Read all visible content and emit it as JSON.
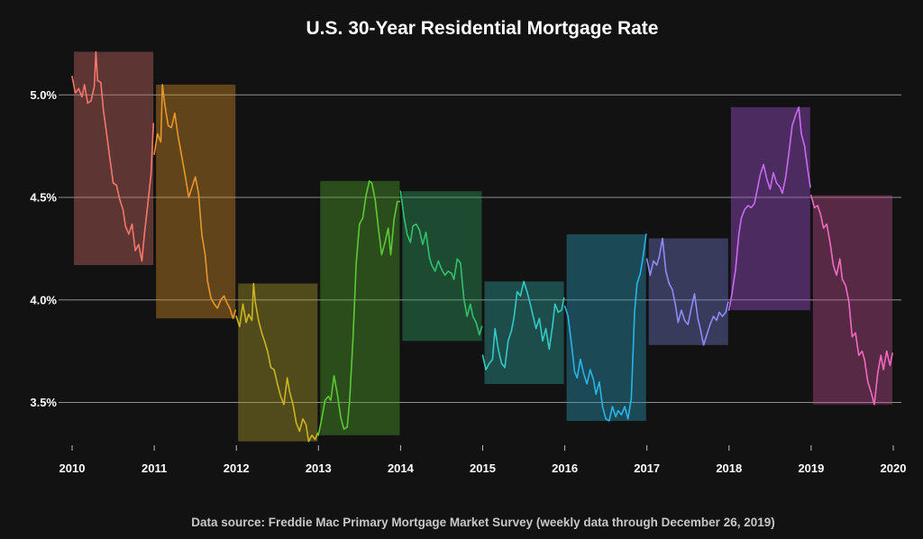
{
  "chart_data": {
    "type": "line",
    "title": "U.S. 30-Year Residential Mortgage Rate",
    "caption": "Data source: Freddie Mac Primary Mortgage Market Survey (weekly data through December 26, 2019)",
    "xlabel": "",
    "ylabel": "",
    "x_ticks": [
      "2010",
      "2011",
      "2012",
      "2013",
      "2014",
      "2015",
      "2016",
      "2017",
      "2018",
      "2019",
      "2020"
    ],
    "y_ticks": [
      "3.5%",
      "4.0%",
      "4.5%",
      "5.0%"
    ],
    "y_tick_values": [
      3.5,
      4.0,
      4.5,
      5.0
    ],
    "xlim": [
      2010,
      2020
    ],
    "ylim": [
      3.25,
      5.2
    ],
    "grid": "horizontal",
    "legend": "none",
    "series": [
      {
        "color": "#f8766d",
        "range": [
          4.17,
          5.21
        ],
        "points": [
          [
            0.0,
            5.09
          ],
          [
            0.04,
            5.01
          ],
          [
            0.08,
            5.03
          ],
          [
            0.12,
            4.99
          ],
          [
            0.15,
            5.05
          ],
          [
            0.19,
            4.96
          ],
          [
            0.23,
            4.97
          ],
          [
            0.27,
            5.04
          ],
          [
            0.29,
            5.21
          ],
          [
            0.31,
            5.07
          ],
          [
            0.35,
            5.06
          ],
          [
            0.38,
            4.93
          ],
          [
            0.42,
            4.81
          ],
          [
            0.46,
            4.69
          ],
          [
            0.5,
            4.57
          ],
          [
            0.54,
            4.56
          ],
          [
            0.58,
            4.49
          ],
          [
            0.62,
            4.44
          ],
          [
            0.65,
            4.36
          ],
          [
            0.69,
            4.32
          ],
          [
            0.73,
            4.37
          ],
          [
            0.77,
            4.24
          ],
          [
            0.81,
            4.27
          ],
          [
            0.85,
            4.19
          ],
          [
            0.88,
            4.32
          ],
          [
            0.92,
            4.46
          ],
          [
            0.96,
            4.61
          ],
          [
            0.99,
            4.86
          ]
        ]
      },
      {
        "color": "#de8c00",
        "range": [
          3.91,
          5.05
        ],
        "points": [
          [
            0.0,
            4.71
          ],
          [
            0.04,
            4.81
          ],
          [
            0.08,
            4.77
          ],
          [
            0.1,
            5.05
          ],
          [
            0.13,
            4.95
          ],
          [
            0.17,
            4.85
          ],
          [
            0.21,
            4.84
          ],
          [
            0.25,
            4.91
          ],
          [
            0.29,
            4.8
          ],
          [
            0.33,
            4.71
          ],
          [
            0.38,
            4.6
          ],
          [
            0.42,
            4.5
          ],
          [
            0.46,
            4.55
          ],
          [
            0.5,
            4.6
          ],
          [
            0.54,
            4.52
          ],
          [
            0.58,
            4.32
          ],
          [
            0.62,
            4.22
          ],
          [
            0.65,
            4.09
          ],
          [
            0.69,
            4.01
          ],
          [
            0.73,
            3.98
          ],
          [
            0.77,
            3.96
          ],
          [
            0.81,
            4.0
          ],
          [
            0.85,
            4.02
          ],
          [
            0.88,
            3.99
          ],
          [
            0.92,
            3.96
          ],
          [
            0.96,
            3.91
          ],
          [
            0.99,
            3.95
          ]
        ]
      },
      {
        "color": "#b79f00",
        "range": [
          3.31,
          4.08
        ],
        "points": [
          [
            0.0,
            3.92
          ],
          [
            0.04,
            3.87
          ],
          [
            0.08,
            3.98
          ],
          [
            0.12,
            3.89
          ],
          [
            0.15,
            3.93
          ],
          [
            0.19,
            3.9
          ],
          [
            0.21,
            4.08
          ],
          [
            0.23,
            3.99
          ],
          [
            0.27,
            3.9
          ],
          [
            0.31,
            3.84
          ],
          [
            0.35,
            3.79
          ],
          [
            0.38,
            3.75
          ],
          [
            0.42,
            3.67
          ],
          [
            0.46,
            3.66
          ],
          [
            0.5,
            3.59
          ],
          [
            0.54,
            3.53
          ],
          [
            0.58,
            3.49
          ],
          [
            0.62,
            3.62
          ],
          [
            0.65,
            3.55
          ],
          [
            0.69,
            3.49
          ],
          [
            0.73,
            3.4
          ],
          [
            0.77,
            3.36
          ],
          [
            0.81,
            3.42
          ],
          [
            0.85,
            3.39
          ],
          [
            0.88,
            3.31
          ],
          [
            0.92,
            3.34
          ],
          [
            0.96,
            3.32
          ],
          [
            0.99,
            3.35
          ]
        ]
      },
      {
        "color": "#7cae00",
        "range": [
          3.34,
          4.58
        ],
        "points": [
          [
            0.0,
            3.34
          ],
          [
            0.04,
            3.42
          ],
          [
            0.08,
            3.51
          ],
          [
            0.12,
            3.53
          ],
          [
            0.15,
            3.51
          ],
          [
            0.19,
            3.63
          ],
          [
            0.23,
            3.54
          ],
          [
            0.27,
            3.43
          ],
          [
            0.31,
            3.37
          ],
          [
            0.35,
            3.38
          ],
          [
            0.38,
            3.51
          ],
          [
            0.42,
            3.81
          ],
          [
            0.46,
            4.18
          ],
          [
            0.5,
            4.37
          ],
          [
            0.54,
            4.4
          ],
          [
            0.58,
            4.51
          ],
          [
            0.62,
            4.58
          ],
          [
            0.65,
            4.57
          ],
          [
            0.69,
            4.49
          ],
          [
            0.73,
            4.35
          ],
          [
            0.77,
            4.22
          ],
          [
            0.81,
            4.28
          ],
          [
            0.85,
            4.35
          ],
          [
            0.88,
            4.22
          ],
          [
            0.92,
            4.39
          ],
          [
            0.96,
            4.48
          ],
          [
            0.99,
            4.48
          ]
        ]
      },
      {
        "color": "#00ba38",
        "range": [
          3.8,
          4.53
        ],
        "points": [
          [
            0.0,
            4.53
          ],
          [
            0.04,
            4.41
          ],
          [
            0.08,
            4.32
          ],
          [
            0.12,
            4.28
          ],
          [
            0.15,
            4.36
          ],
          [
            0.19,
            4.37
          ],
          [
            0.23,
            4.34
          ],
          [
            0.27,
            4.27
          ],
          [
            0.31,
            4.33
          ],
          [
            0.35,
            4.21
          ],
          [
            0.38,
            4.17
          ],
          [
            0.42,
            4.14
          ],
          [
            0.46,
            4.19
          ],
          [
            0.5,
            4.15
          ],
          [
            0.54,
            4.12
          ],
          [
            0.58,
            4.14
          ],
          [
            0.62,
            4.13
          ],
          [
            0.65,
            4.1
          ],
          [
            0.69,
            4.2
          ],
          [
            0.73,
            4.18
          ],
          [
            0.77,
            4.01
          ],
          [
            0.81,
            3.92
          ],
          [
            0.85,
            3.98
          ],
          [
            0.88,
            3.92
          ],
          [
            0.92,
            3.89
          ],
          [
            0.96,
            3.83
          ],
          [
            0.99,
            3.87
          ]
        ]
      },
      {
        "color": "#00c08b",
        "range": [
          3.59,
          4.09
        ],
        "points": [
          [
            0.0,
            3.73
          ],
          [
            0.04,
            3.66
          ],
          [
            0.08,
            3.69
          ],
          [
            0.12,
            3.71
          ],
          [
            0.15,
            3.86
          ],
          [
            0.19,
            3.76
          ],
          [
            0.23,
            3.69
          ],
          [
            0.27,
            3.67
          ],
          [
            0.31,
            3.8
          ],
          [
            0.35,
            3.85
          ],
          [
            0.38,
            3.91
          ],
          [
            0.42,
            4.04
          ],
          [
            0.46,
            4.02
          ],
          [
            0.5,
            4.09
          ],
          [
            0.54,
            4.04
          ],
          [
            0.58,
            3.98
          ],
          [
            0.62,
            3.91
          ],
          [
            0.65,
            3.86
          ],
          [
            0.69,
            3.91
          ],
          [
            0.73,
            3.8
          ],
          [
            0.77,
            3.86
          ],
          [
            0.81,
            3.76
          ],
          [
            0.85,
            3.87
          ],
          [
            0.88,
            3.98
          ],
          [
            0.92,
            3.94
          ],
          [
            0.96,
            3.95
          ],
          [
            0.99,
            4.01
          ]
        ]
      },
      {
        "color": "#00bfc4",
        "range": [
          3.41,
          4.32
        ],
        "points": [
          [
            0.0,
            3.97
          ],
          [
            0.04,
            3.92
          ],
          [
            0.08,
            3.79
          ],
          [
            0.12,
            3.65
          ],
          [
            0.15,
            3.62
          ],
          [
            0.19,
            3.71
          ],
          [
            0.23,
            3.64
          ],
          [
            0.27,
            3.59
          ],
          [
            0.31,
            3.66
          ],
          [
            0.35,
            3.61
          ],
          [
            0.38,
            3.54
          ],
          [
            0.42,
            3.6
          ],
          [
            0.46,
            3.48
          ],
          [
            0.5,
            3.42
          ],
          [
            0.54,
            3.41
          ],
          [
            0.58,
            3.48
          ],
          [
            0.62,
            3.43
          ],
          [
            0.65,
            3.46
          ],
          [
            0.69,
            3.44
          ],
          [
            0.73,
            3.48
          ],
          [
            0.77,
            3.42
          ],
          [
            0.81,
            3.52
          ],
          [
            0.85,
            3.94
          ],
          [
            0.88,
            4.08
          ],
          [
            0.92,
            4.13
          ],
          [
            0.96,
            4.23
          ],
          [
            0.99,
            4.32
          ]
        ]
      },
      {
        "color": "#00b4f0",
        "range": [
          3.78,
          4.3
        ],
        "points": [
          [
            0.0,
            4.2
          ],
          [
            0.04,
            4.12
          ],
          [
            0.08,
            4.19
          ],
          [
            0.12,
            4.17
          ],
          [
            0.15,
            4.21
          ],
          [
            0.19,
            4.3
          ],
          [
            0.23,
            4.14
          ],
          [
            0.27,
            4.08
          ],
          [
            0.31,
            4.05
          ],
          [
            0.35,
            3.97
          ],
          [
            0.38,
            3.89
          ],
          [
            0.42,
            3.95
          ],
          [
            0.46,
            3.9
          ],
          [
            0.5,
            3.88
          ],
          [
            0.54,
            3.96
          ],
          [
            0.58,
            4.03
          ],
          [
            0.62,
            3.91
          ],
          [
            0.65,
            3.86
          ],
          [
            0.69,
            3.78
          ],
          [
            0.73,
            3.83
          ],
          [
            0.77,
            3.88
          ],
          [
            0.81,
            3.92
          ],
          [
            0.85,
            3.9
          ],
          [
            0.88,
            3.94
          ],
          [
            0.92,
            3.92
          ],
          [
            0.96,
            3.94
          ],
          [
            0.99,
            3.99
          ]
        ]
      },
      {
        "color": "#619cff",
        "range": [
          3.95,
          4.94
        ],
        "points": [
          [
            0.0,
            3.95
          ],
          [
            0.04,
            4.04
          ],
          [
            0.08,
            4.15
          ],
          [
            0.12,
            4.32
          ],
          [
            0.15,
            4.4
          ],
          [
            0.19,
            4.44
          ],
          [
            0.23,
            4.46
          ],
          [
            0.27,
            4.45
          ],
          [
            0.31,
            4.47
          ],
          [
            0.35,
            4.55
          ],
          [
            0.38,
            4.61
          ],
          [
            0.42,
            4.66
          ],
          [
            0.46,
            4.59
          ],
          [
            0.5,
            4.54
          ],
          [
            0.54,
            4.62
          ],
          [
            0.58,
            4.57
          ],
          [
            0.62,
            4.55
          ],
          [
            0.65,
            4.52
          ],
          [
            0.69,
            4.6
          ],
          [
            0.73,
            4.72
          ],
          [
            0.77,
            4.85
          ],
          [
            0.81,
            4.9
          ],
          [
            0.85,
            4.94
          ],
          [
            0.88,
            4.81
          ],
          [
            0.92,
            4.75
          ],
          [
            0.96,
            4.63
          ],
          [
            0.99,
            4.55
          ]
        ]
      },
      {
        "color": "#c77cff",
        "range": [
          3.49,
          4.51
        ],
        "points": [
          [
            0.0,
            4.51
          ],
          [
            0.04,
            4.45
          ],
          [
            0.08,
            4.46
          ],
          [
            0.12,
            4.41
          ],
          [
            0.15,
            4.35
          ],
          [
            0.19,
            4.37
          ],
          [
            0.23,
            4.28
          ],
          [
            0.27,
            4.17
          ],
          [
            0.31,
            4.12
          ],
          [
            0.35,
            4.2
          ],
          [
            0.38,
            4.1
          ],
          [
            0.42,
            4.07
          ],
          [
            0.46,
            3.99
          ],
          [
            0.5,
            3.82
          ],
          [
            0.54,
            3.84
          ],
          [
            0.58,
            3.73
          ],
          [
            0.62,
            3.75
          ],
          [
            0.65,
            3.71
          ],
          [
            0.69,
            3.6
          ],
          [
            0.73,
            3.55
          ],
          [
            0.77,
            3.49
          ],
          [
            0.81,
            3.64
          ],
          [
            0.85,
            3.73
          ],
          [
            0.88,
            3.66
          ],
          [
            0.92,
            3.75
          ],
          [
            0.96,
            3.68
          ],
          [
            0.99,
            3.74
          ]
        ]
      }
    ],
    "band_colors": [
      "#c66a62",
      "#cf8a24",
      "#a99a2c",
      "#4fa02a",
      "#2a9a5c",
      "#2e9f99",
      "#2896b6",
      "#6d74c4",
      "#9a4ecc",
      "#b94a8a"
    ],
    "line_colors": [
      "#f8766d",
      "#e8962a",
      "#c9b421",
      "#5cc936",
      "#33c06e",
      "#34c9c2",
      "#27b5e8",
      "#8c8cff",
      "#c86bf2",
      "#f06bbf"
    ]
  }
}
